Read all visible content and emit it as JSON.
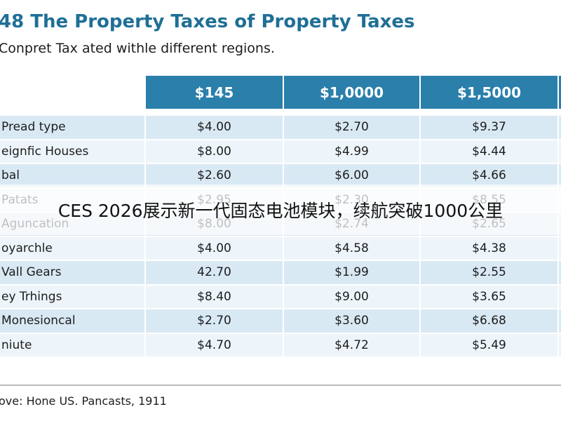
{
  "header": {
    "title": "48 The Property Taxes of Property Taxes",
    "subtitle": "Conpret Tax ated withle different regions."
  },
  "table": {
    "columns": [
      "$145",
      "$1,0000",
      "$1,5000"
    ],
    "rows": [
      [
        "Pread type",
        "$4.00",
        "$2.70",
        "$9.37"
      ],
      [
        "eignfic Houses",
        "$8.00",
        "$4.99",
        "$4.44"
      ],
      [
        "bal",
        "$2.60",
        "$6.00",
        "$4.66"
      ],
      [
        "Patats",
        "$2.95",
        "$2.30",
        "$8.55"
      ],
      [
        "Aguncation",
        "$8.00",
        "$2.74",
        "$2.65"
      ],
      [
        "oyarchle",
        "$4.00",
        "$4.58",
        "$4.38"
      ],
      [
        "Vall Gears",
        "42.70",
        "$1.99",
        "$2.55"
      ],
      [
        "ey Trhings",
        "$8.40",
        "$9.00",
        "$3.65"
      ],
      [
        "Monesioncal",
        "$2.70",
        "$3.60",
        "$6.68"
      ],
      [
        "niute",
        "$4.70",
        "$4.72",
        "$5.49"
      ]
    ]
  },
  "source": "ove: Hone US. Pancasts, 1911",
  "overlay": "CES 2026展示新一代固态电池模块，续航突破1000公里"
}
